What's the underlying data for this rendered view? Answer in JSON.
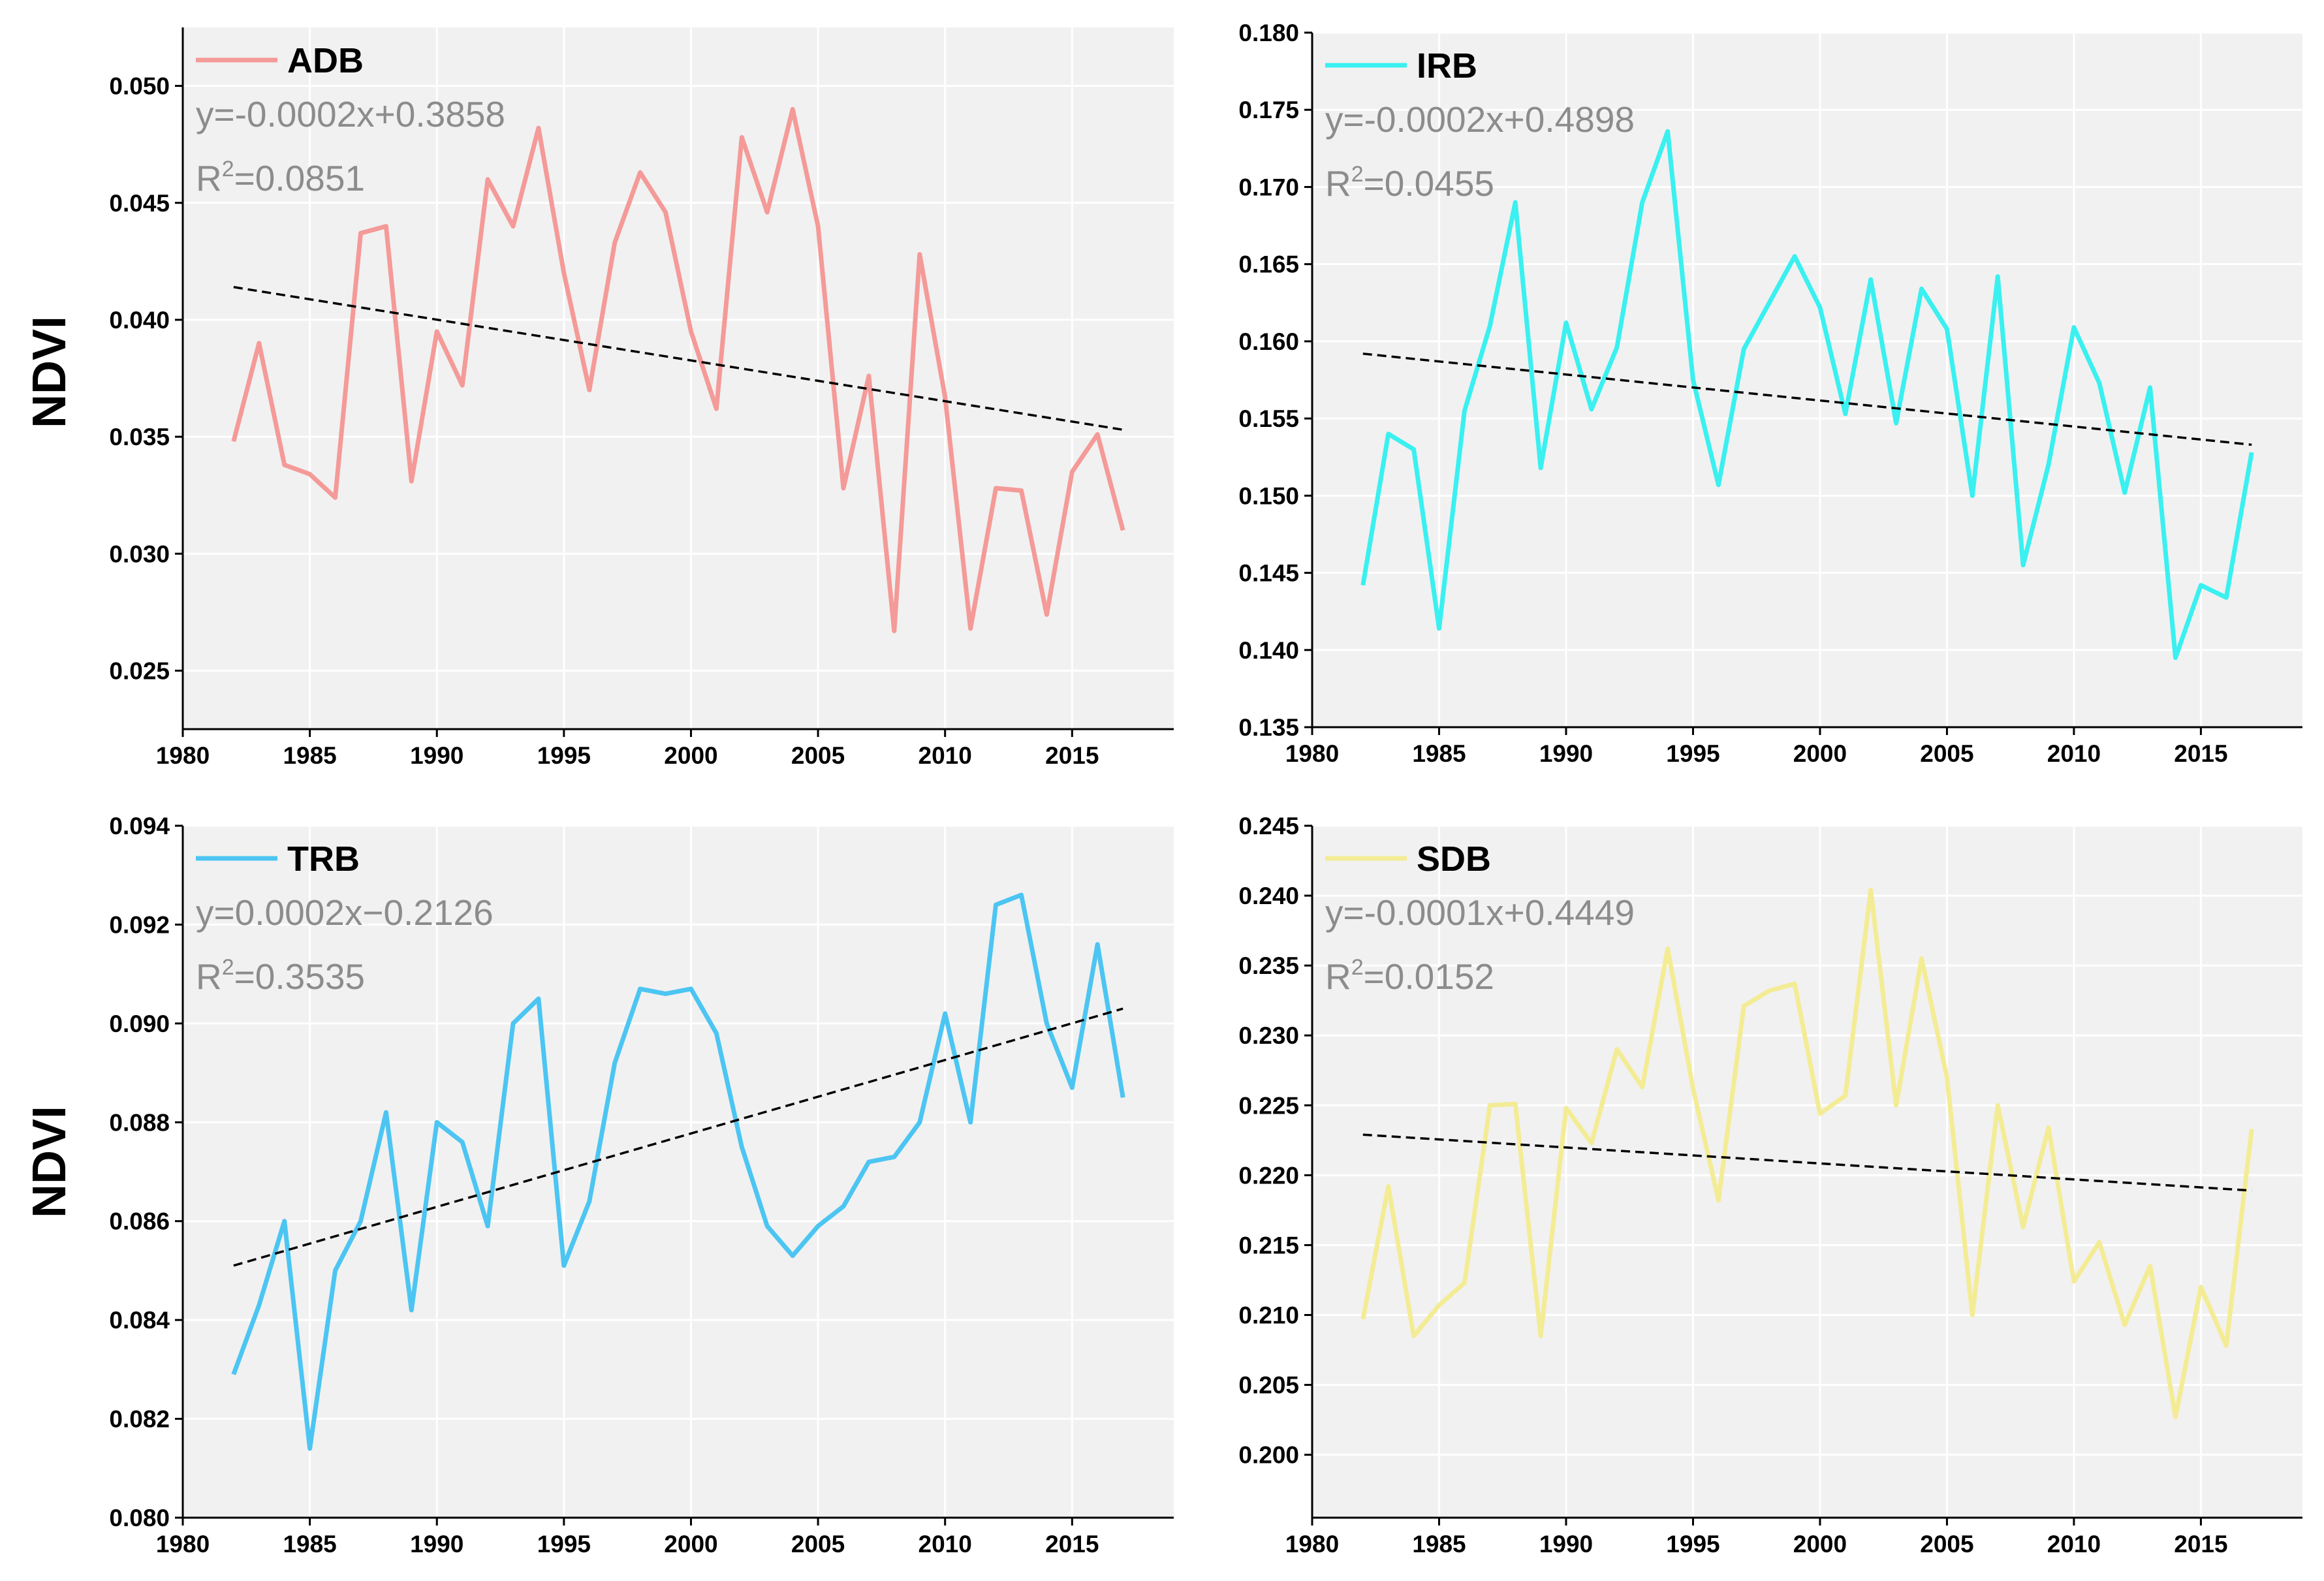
{
  "figure": {
    "ylabel": "NDVI",
    "background": "#f1f1f1",
    "grid_color": "#ffffff",
    "trend_color": "#000000"
  },
  "chart_data": [
    {
      "type": "line",
      "name": "ADB",
      "color": "#f49a98",
      "legend_position": "top-left",
      "x": [
        1982,
        1983,
        1984,
        1985,
        1986,
        1987,
        1988,
        1989,
        1990,
        1991,
        1992,
        1993,
        1994,
        1995,
        1996,
        1997,
        1998,
        1999,
        2000,
        2001,
        2002,
        2003,
        2004,
        2005,
        2006,
        2007,
        2008,
        2009,
        2010,
        2011,
        2012,
        2013,
        2014,
        2015,
        2016,
        2017
      ],
      "values": [
        0.0348,
        0.039,
        0.0338,
        0.0334,
        0.0324,
        0.0437,
        0.044,
        0.0331,
        0.0395,
        0.0372,
        0.046,
        0.044,
        0.0482,
        0.042,
        0.037,
        0.0433,
        0.0463,
        0.0446,
        0.0395,
        0.0362,
        0.0478,
        0.0446,
        0.049,
        0.044,
        0.0328,
        0.0376,
        0.0267,
        0.0428,
        0.0367,
        0.0268,
        0.0328,
        0.0327,
        0.0274,
        0.0335,
        0.0351,
        0.031
      ],
      "equation": "y=-0.0002x+0.3858",
      "r2_label": "R",
      "r2_exp": "2",
      "r2_value": "=0.0851",
      "trend": {
        "x": [
          1982,
          2017
        ],
        "y": [
          0.0414,
          0.0353
        ]
      },
      "xlim": [
        1980,
        2019
      ],
      "ylim": [
        0.0225,
        0.0525
      ],
      "xticks": [
        "1980",
        "1985",
        "1990",
        "1995",
        "2000",
        "2005",
        "2010",
        "2015"
      ],
      "xtick_values": [
        1980,
        1985,
        1990,
        1995,
        2000,
        2005,
        2010,
        2015
      ],
      "yticks": [
        "0.025",
        "0.030",
        "0.035",
        "0.040",
        "0.045",
        "0.050"
      ],
      "ytick_values": [
        0.025,
        0.03,
        0.035,
        0.04,
        0.045,
        0.05
      ]
    },
    {
      "type": "line",
      "name": "IRB",
      "color": "#3af0f0",
      "legend_position": "top-left",
      "x": [
        1982,
        1983,
        1984,
        1985,
        1986,
        1987,
        1988,
        1989,
        1990,
        1991,
        1992,
        1993,
        1994,
        1995,
        1996,
        1997,
        1998,
        1999,
        2000,
        2001,
        2002,
        2003,
        2004,
        2005,
        2006,
        2007,
        2008,
        2009,
        2010,
        2011,
        2012,
        2013,
        2014,
        2015,
        2016,
        2017
      ],
      "values": [
        0.1442,
        0.154,
        0.153,
        0.1414,
        0.1555,
        0.161,
        0.169,
        0.1518,
        0.1612,
        0.1556,
        0.1596,
        0.169,
        0.1736,
        0.1575,
        0.1507,
        0.1595,
        0.1625,
        0.1655,
        0.1622,
        0.1553,
        0.164,
        0.1547,
        0.1634,
        0.1608,
        0.15,
        0.1642,
        0.1455,
        0.152,
        0.1609,
        0.1573,
        0.1502,
        0.157,
        0.1395,
        0.1442,
        0.1434,
        0.1528
      ],
      "equation": "y=-0.0002x+0.4898",
      "r2_label": "R",
      "r2_exp": "2",
      "r2_value": "=0.0455",
      "trend": {
        "x": [
          1982,
          2017
        ],
        "y": [
          0.1592,
          0.1533
        ]
      },
      "xlim": [
        1980,
        2019
      ],
      "ylim": [
        0.135,
        0.18
      ],
      "xticks": [
        "1980",
        "1985",
        "1990",
        "1995",
        "2000",
        "2005",
        "2010",
        "2015"
      ],
      "xtick_values": [
        1980,
        1985,
        1990,
        1995,
        2000,
        2005,
        2010,
        2015
      ],
      "yticks": [
        "0.135",
        "0.140",
        "0.145",
        "0.150",
        "0.155",
        "0.160",
        "0.165",
        "0.170",
        "0.175",
        "0.180"
      ],
      "ytick_values": [
        0.135,
        0.14,
        0.145,
        0.15,
        0.155,
        0.16,
        0.165,
        0.17,
        0.175,
        0.18
      ]
    },
    {
      "type": "line",
      "name": "TRB",
      "color": "#4cc5f2",
      "legend_position": "top-left",
      "x": [
        1982,
        1983,
        1984,
        1985,
        1986,
        1987,
        1988,
        1989,
        1990,
        1991,
        1992,
        1993,
        1994,
        1995,
        1996,
        1997,
        1998,
        1999,
        2000,
        2001,
        2002,
        2003,
        2004,
        2005,
        2006,
        2007,
        2008,
        2009,
        2010,
        2011,
        2012,
        2013,
        2014,
        2015,
        2016,
        2017
      ],
      "values": [
        0.0829,
        0.0843,
        0.086,
        0.0814,
        0.085,
        0.086,
        0.0882,
        0.0842,
        0.088,
        0.0876,
        0.0859,
        0.09,
        0.0905,
        0.0851,
        0.0864,
        0.0892,
        0.0907,
        0.0906,
        0.0907,
        0.0898,
        0.0875,
        0.0859,
        0.0853,
        0.0859,
        0.0863,
        0.0872,
        0.0873,
        0.088,
        0.0902,
        0.088,
        0.0924,
        0.0926,
        0.09,
        0.0887,
        0.0916,
        0.0885
      ],
      "equation": "y=0.0002x−0.2126",
      "r2_label": "R",
      "r2_exp": "2",
      "r2_value": "=0.3535",
      "trend": {
        "x": [
          1982,
          2017
        ],
        "y": [
          0.0851,
          0.0903
        ]
      },
      "xlim": [
        1980,
        2019
      ],
      "ylim": [
        0.08,
        0.094
      ],
      "xticks": [
        "1980",
        "1985",
        "1990",
        "1995",
        "2000",
        "2005",
        "2010",
        "2015"
      ],
      "xtick_values": [
        1980,
        1985,
        1990,
        1995,
        2000,
        2005,
        2010,
        2015
      ],
      "yticks": [
        "0.080",
        "0.082",
        "0.084",
        "0.086",
        "0.088",
        "0.090",
        "0.092",
        "0.094"
      ],
      "ytick_values": [
        0.08,
        0.082,
        0.084,
        0.086,
        0.088,
        0.09,
        0.092,
        0.094
      ]
    },
    {
      "type": "line",
      "name": "SDB",
      "color": "#f3ec95",
      "legend_position": "top-left",
      "x": [
        1982,
        1983,
        1984,
        1985,
        1986,
        1987,
        1988,
        1989,
        1990,
        1991,
        1992,
        1993,
        1994,
        1995,
        1996,
        1997,
        1998,
        1999,
        2000,
        2001,
        2002,
        2003,
        2004,
        2005,
        2006,
        2007,
        2008,
        2009,
        2010,
        2011,
        2012,
        2013,
        2014,
        2015,
        2016,
        2017
      ],
      "values": [
        0.2097,
        0.2192,
        0.2085,
        0.2107,
        0.2123,
        0.225,
        0.2251,
        0.2085,
        0.2248,
        0.2223,
        0.229,
        0.2263,
        0.2362,
        0.2262,
        0.2182,
        0.2321,
        0.2332,
        0.2337,
        0.2244,
        0.2257,
        0.2404,
        0.225,
        0.2355,
        0.227,
        0.21,
        0.225,
        0.2163,
        0.2234,
        0.2124,
        0.2152,
        0.2093,
        0.2135,
        0.2027,
        0.212,
        0.2078,
        0.2233
      ],
      "equation": "y=-0.0001x+0.4449",
      "r2_label": "R",
      "r2_exp": "2",
      "r2_value": "=0.0152",
      "trend": {
        "x": [
          1982,
          2017
        ],
        "y": [
          0.2229,
          0.2189
        ]
      },
      "xlim": [
        1980,
        2019
      ],
      "ylim": [
        0.1955,
        0.245
      ],
      "xticks": [
        "1980",
        "1985",
        "1990",
        "1995",
        "2000",
        "2005",
        "2010",
        "2015"
      ],
      "xtick_values": [
        1980,
        1985,
        1990,
        1995,
        2000,
        2005,
        2010,
        2015
      ],
      "yticks": [
        "0.200",
        "0.205",
        "0.210",
        "0.215",
        "0.220",
        "0.225",
        "0.230",
        "0.235",
        "0.240",
        "0.245"
      ],
      "ytick_values": [
        0.2,
        0.205,
        0.21,
        0.215,
        0.22,
        0.225,
        0.23,
        0.235,
        0.24,
        0.245
      ]
    }
  ]
}
